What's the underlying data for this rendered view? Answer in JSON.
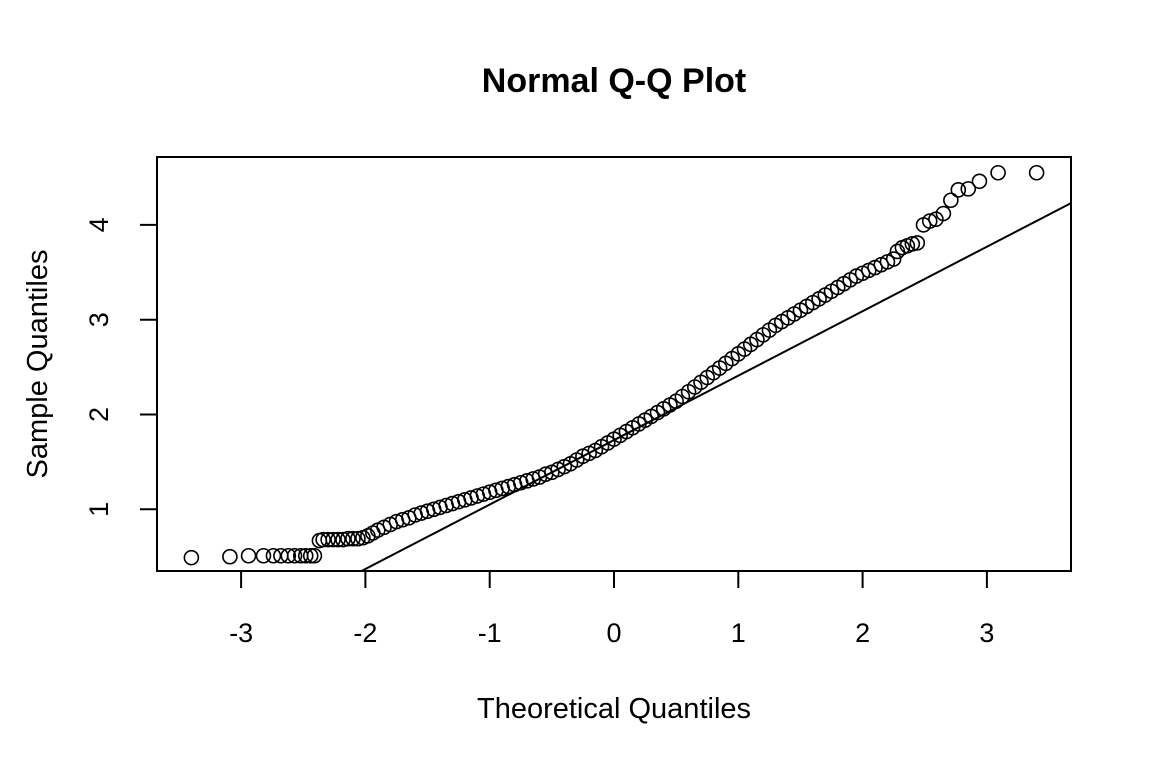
{
  "chart_data": {
    "type": "scatter",
    "title": "Normal Q-Q Plot",
    "xlabel": "Theoretical Quantiles",
    "ylabel": "Sample Quantiles",
    "xlim": [
      -3.7,
      3.7
    ],
    "ylim": [
      0.33,
      4.7
    ],
    "x_ticks": [
      -3,
      -2,
      -1,
      0,
      1,
      2,
      3
    ],
    "x_tick_labels": [
      "-3",
      "-2",
      "-1",
      "0",
      "1",
      "2",
      "3"
    ],
    "y_ticks": [
      1,
      2,
      3,
      4
    ],
    "y_tick_labels": [
      "1",
      "2",
      "3",
      "4"
    ],
    "grid": false,
    "legend": "none",
    "marker": "open-circle",
    "colors": {
      "points": "#000000",
      "line": "#000000",
      "background": "#ffffff"
    },
    "reference_line": {
      "intercept": 1.73,
      "slope": 0.68
    },
    "series": [
      {
        "points": [
          [
            -3.4,
            0.49
          ],
          [
            -3.09,
            0.5
          ],
          [
            -2.94,
            0.51
          ],
          [
            -2.82,
            0.51
          ],
          [
            -2.74,
            0.51
          ],
          [
            -2.68,
            0.51
          ],
          [
            -2.62,
            0.51
          ],
          [
            -2.57,
            0.51
          ],
          [
            -2.52,
            0.51
          ],
          [
            -2.48,
            0.51
          ],
          [
            -2.44,
            0.51
          ],
          [
            -2.41,
            0.51
          ],
          [
            -2.37,
            0.67
          ],
          [
            -2.34,
            0.68
          ],
          [
            -2.3,
            0.68
          ],
          [
            -2.26,
            0.68
          ],
          [
            -2.22,
            0.68
          ],
          [
            -2.18,
            0.68
          ],
          [
            -2.14,
            0.69
          ],
          [
            -2.1,
            0.69
          ],
          [
            -2.06,
            0.69
          ],
          [
            -2.02,
            0.7
          ],
          [
            -1.98,
            0.72
          ],
          [
            -1.94,
            0.75
          ],
          [
            -1.9,
            0.78
          ],
          [
            -1.85,
            0.81
          ],
          [
            -1.8,
            0.84
          ],
          [
            -1.75,
            0.87
          ],
          [
            -1.7,
            0.89
          ],
          [
            -1.65,
            0.91
          ],
          [
            -1.6,
            0.94
          ],
          [
            -1.55,
            0.96
          ],
          [
            -1.5,
            0.98
          ],
          [
            -1.45,
            1.0
          ],
          [
            -1.4,
            1.02
          ],
          [
            -1.35,
            1.04
          ],
          [
            -1.3,
            1.06
          ],
          [
            -1.25,
            1.08
          ],
          [
            -1.2,
            1.1
          ],
          [
            -1.15,
            1.12
          ],
          [
            -1.1,
            1.14
          ],
          [
            -1.05,
            1.16
          ],
          [
            -1.0,
            1.18
          ],
          [
            -0.95,
            1.2
          ],
          [
            -0.9,
            1.22
          ],
          [
            -0.85,
            1.24
          ],
          [
            -0.8,
            1.26
          ],
          [
            -0.75,
            1.28
          ],
          [
            -0.7,
            1.3
          ],
          [
            -0.65,
            1.32
          ],
          [
            -0.6,
            1.34
          ],
          [
            -0.55,
            1.37
          ],
          [
            -0.5,
            1.39
          ],
          [
            -0.45,
            1.42
          ],
          [
            -0.4,
            1.45
          ],
          [
            -0.35,
            1.48
          ],
          [
            -0.3,
            1.52
          ],
          [
            -0.25,
            1.56
          ],
          [
            -0.2,
            1.59
          ],
          [
            -0.15,
            1.62
          ],
          [
            -0.1,
            1.66
          ],
          [
            -0.05,
            1.7
          ],
          [
            0.0,
            1.74
          ],
          [
            0.05,
            1.78
          ],
          [
            0.1,
            1.82
          ],
          [
            0.15,
            1.86
          ],
          [
            0.2,
            1.9
          ],
          [
            0.25,
            1.94
          ],
          [
            0.3,
            1.98
          ],
          [
            0.35,
            2.02
          ],
          [
            0.4,
            2.06
          ],
          [
            0.45,
            2.1
          ],
          [
            0.5,
            2.14
          ],
          [
            0.55,
            2.19
          ],
          [
            0.6,
            2.24
          ],
          [
            0.65,
            2.29
          ],
          [
            0.7,
            2.34
          ],
          [
            0.75,
            2.39
          ],
          [
            0.8,
            2.44
          ],
          [
            0.85,
            2.49
          ],
          [
            0.9,
            2.54
          ],
          [
            0.95,
            2.59
          ],
          [
            1.0,
            2.64
          ],
          [
            1.05,
            2.69
          ],
          [
            1.1,
            2.74
          ],
          [
            1.15,
            2.79
          ],
          [
            1.2,
            2.84
          ],
          [
            1.25,
            2.89
          ],
          [
            1.3,
            2.94
          ],
          [
            1.35,
            2.98
          ],
          [
            1.4,
            3.02
          ],
          [
            1.45,
            3.06
          ],
          [
            1.5,
            3.1
          ],
          [
            1.55,
            3.14
          ],
          [
            1.6,
            3.18
          ],
          [
            1.65,
            3.22
          ],
          [
            1.7,
            3.26
          ],
          [
            1.75,
            3.3
          ],
          [
            1.8,
            3.34
          ],
          [
            1.85,
            3.38
          ],
          [
            1.9,
            3.42
          ],
          [
            1.95,
            3.46
          ],
          [
            2.0,
            3.49
          ],
          [
            2.05,
            3.52
          ],
          [
            2.1,
            3.55
          ],
          [
            2.15,
            3.58
          ],
          [
            2.2,
            3.61
          ],
          [
            2.25,
            3.64
          ],
          [
            2.28,
            3.72
          ],
          [
            2.32,
            3.76
          ],
          [
            2.36,
            3.78
          ],
          [
            2.4,
            3.8
          ],
          [
            2.44,
            3.81
          ],
          [
            2.49,
            4.0
          ],
          [
            2.54,
            4.04
          ],
          [
            2.59,
            4.06
          ],
          [
            2.65,
            4.12
          ],
          [
            2.71,
            4.26
          ],
          [
            2.77,
            4.37
          ],
          [
            2.85,
            4.38
          ],
          [
            2.94,
            4.46
          ],
          [
            3.09,
            4.55
          ],
          [
            3.4,
            4.55
          ]
        ]
      }
    ]
  }
}
